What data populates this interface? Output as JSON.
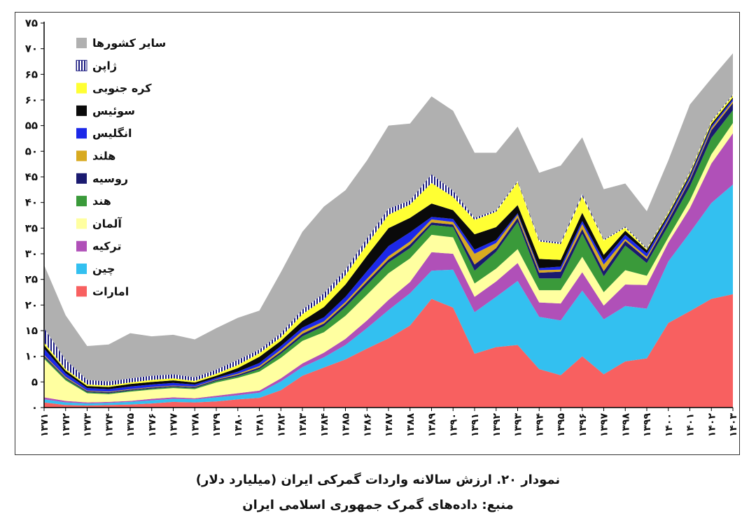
{
  "caption": {
    "title": "نمودار ۲۰. ارزش سالانه واردات گمرکی ایران (میلیارد دلار)",
    "source": "منبع: داده‌های گمرک جمهوری اسلامی ایران"
  },
  "chart_data": {
    "type": "area",
    "stacked": true,
    "ylim": [
      0,
      75
    ],
    "y_ticks": [
      "۰",
      "۵",
      "۱۰",
      "۱۵",
      "۲۰",
      "۲۵",
      "۳۰",
      "۳۵",
      "۴۰",
      "۴۵",
      "۵۰",
      "۵۵",
      "۶۰",
      "۶۵",
      "۷۰",
      "۷۵"
    ],
    "y_tick_values": [
      0,
      5,
      10,
      15,
      20,
      25,
      30,
      35,
      40,
      45,
      50,
      55,
      60,
      65,
      70,
      75
    ],
    "x_labels": [
      "۱۳۷۱",
      "۱۳۷۲",
      "۱۳۷۳",
      "۱۳۷۴",
      "۱۳۷۵",
      "۱۳۷۶",
      "۱۳۷۷",
      "۱۳۷۸",
      "۱۳۷۹",
      "۱۳۸۰",
      "۱۳۸۱",
      "۱۳۸۲",
      "۱۳۸۳",
      "۱۳۸۴",
      "۱۳۸۵",
      "۱۳۸۶",
      "۱۳۸۷",
      "۱۳۸۸",
      "۱۳۸۹",
      "۱۳۹۰",
      "۱۳۹۱",
      "۱۳۹۲",
      "۱۳۹۳",
      "۱۳۹۴",
      "۱۳۹۵",
      "۱۳۹۶",
      "۱۳۹۷",
      "۱۳۹۸",
      "۱۳۹۹",
      "۱۴۰۰",
      "۱۴۰۱",
      "۱۴۰۲",
      "۱۴۰۳"
    ],
    "legend_position": "top-left",
    "grid": false,
    "series": [
      {
        "name": "امارات",
        "color": "#f86060",
        "values": [
          1.0,
          0.5,
          0.4,
          0.5,
          0.6,
          0.8,
          1.1,
          1.0,
          1.2,
          1.6,
          1.9,
          3.4,
          6.2,
          7.8,
          9.4,
          11.5,
          13.5,
          16.0,
          21.2,
          19.5,
          10.5,
          11.8,
          12.2,
          7.5,
          6.3,
          10.0,
          6.5,
          9.0,
          9.6,
          16.5,
          18.8,
          21.2,
          22.1
        ]
      },
      {
        "name": "چین",
        "color": "#33c0f0",
        "values": [
          0.6,
          0.5,
          0.4,
          0.4,
          0.5,
          0.6,
          0.6,
          0.6,
          0.8,
          0.8,
          1.0,
          1.7,
          1.7,
          2.0,
          2.8,
          4.0,
          5.5,
          6.3,
          5.5,
          7.4,
          8.1,
          9.8,
          12.5,
          10.2,
          10.7,
          12.8,
          10.7,
          10.8,
          9.7,
          12.0,
          15.3,
          18.7,
          21.4
        ]
      },
      {
        "name": "ترکیه",
        "color": "#b050b8",
        "values": [
          0.4,
          0.3,
          0.2,
          0.2,
          0.2,
          0.3,
          0.3,
          0.2,
          0.3,
          0.4,
          0.4,
          0.6,
          0.7,
          0.9,
          1.2,
          1.5,
          2.0,
          2.2,
          3.6,
          3.1,
          3.0,
          3.0,
          3.5,
          2.8,
          3.3,
          3.6,
          2.7,
          4.2,
          4.6,
          3.7,
          4.8,
          7.7,
          10.0
        ]
      },
      {
        "name": "آلمان",
        "color": "#ffffa0",
        "values": [
          7.5,
          4.0,
          1.8,
          1.5,
          1.8,
          1.8,
          1.8,
          1.8,
          2.6,
          3.0,
          3.7,
          4.0,
          4.4,
          4.0,
          4.5,
          5.0,
          5.2,
          4.6,
          3.4,
          3.2,
          2.6,
          2.5,
          2.7,
          2.4,
          2.6,
          3.0,
          2.6,
          2.8,
          1.8,
          1.0,
          1.5,
          1.8,
          2.0
        ]
      },
      {
        "name": "هند",
        "color": "#3a9a3a",
        "values": [
          0.3,
          0.3,
          0.2,
          0.2,
          0.2,
          0.2,
          0.2,
          0.2,
          0.3,
          0.3,
          0.5,
          0.8,
          0.9,
          1.2,
          1.7,
          1.9,
          2.1,
          2.0,
          1.9,
          2.0,
          2.5,
          3.3,
          5.3,
          2.3,
          2.3,
          4.5,
          3.1,
          4.8,
          2.5,
          2.3,
          2.7,
          3.2,
          2.5
        ]
      },
      {
        "name": "روسیه",
        "color": "#1a1a70",
        "values": [
          0.3,
          0.2,
          0.2,
          0.2,
          0.2,
          0.2,
          0.2,
          0.2,
          0.2,
          0.3,
          0.3,
          0.4,
          0.5,
          0.5,
          0.6,
          0.7,
          0.6,
          0.7,
          0.5,
          0.5,
          1.2,
          0.7,
          0.8,
          1.1,
          1.3,
          0.9,
          1.0,
          0.9,
          0.8,
          1.0,
          1.2,
          1.5,
          1.4
        ]
      },
      {
        "name": "هلند",
        "color": "#d8aa20",
        "values": [
          0.2,
          0.2,
          0.1,
          0.1,
          0.1,
          0.1,
          0.1,
          0.1,
          0.1,
          0.2,
          0.3,
          0.4,
          0.5,
          0.4,
          0.4,
          0.5,
          0.6,
          0.6,
          0.6,
          0.5,
          2.1,
          1.0,
          0.6,
          0.5,
          0.4,
          1.0,
          1.3,
          0.4,
          0.4,
          0.3,
          0.3,
          0.4,
          0.4
        ]
      },
      {
        "name": "انگلیس",
        "color": "#1c28e8",
        "values": [
          1.2,
          0.7,
          0.5,
          0.5,
          0.5,
          0.5,
          0.5,
          0.4,
          0.3,
          0.4,
          0.6,
          0.7,
          0.7,
          0.8,
          1.0,
          1.5,
          2.0,
          1.8,
          0.5,
          0.6,
          0.8,
          0.6,
          0.3,
          0.4,
          0.6,
          0.6,
          0.8,
          0.8,
          0.7,
          0.5,
          0.5,
          0.4,
          0.4
        ]
      },
      {
        "name": "سوئیس",
        "color": "#0a0a0a",
        "values": [
          0.7,
          0.5,
          0.4,
          0.4,
          0.5,
          0.5,
          0.5,
          0.4,
          0.4,
          0.7,
          1.2,
          1.0,
          1.3,
          2.0,
          2.4,
          3.0,
          3.5,
          2.8,
          2.6,
          1.7,
          3.0,
          2.5,
          1.6,
          1.8,
          1.3,
          1.6,
          1.1,
          0.8,
          0.6,
          0.4,
          0.4,
          0.4,
          0.3
        ]
      },
      {
        "name": "کره جنوبی",
        "color": "#ffff33",
        "values": [
          0.5,
          0.3,
          0.3,
          0.3,
          0.3,
          0.4,
          0.4,
          0.3,
          0.4,
          0.6,
          0.7,
          0.7,
          1.3,
          1.5,
          1.8,
          2.2,
          2.6,
          2.6,
          4.0,
          2.6,
          2.8,
          3.0,
          4.5,
          3.4,
          3.1,
          3.2,
          2.8,
          0.6,
          0.2,
          0.3,
          0.3,
          0.4,
          0.4
        ]
      },
      {
        "name": "ژاپن",
        "color": "#1a1a80",
        "pattern": "stripes",
        "values": [
          2.8,
          1.8,
          0.9,
          0.8,
          0.8,
          0.8,
          0.8,
          0.7,
          0.8,
          1.0,
          0.7,
          0.8,
          0.9,
          1.2,
          1.1,
          1.2,
          1.2,
          0.8,
          1.7,
          1.2,
          0.4,
          0.3,
          0.2,
          0.3,
          0.3,
          0.5,
          0.2,
          0.2,
          0.2,
          0.1,
          0.2,
          0.2,
          0.2
        ]
      },
      {
        "name": "سایر کشورها",
        "color": "#b0b0b0",
        "values": [
          12.3,
          8.7,
          6.6,
          7.2,
          8.8,
          7.7,
          7.7,
          7.4,
          8.1,
          8.2,
          7.6,
          11.9,
          15.2,
          16.9,
          15.5,
          15.2,
          16.2,
          15.0,
          15.2,
          15.6,
          12.7,
          11.2,
          10.6,
          13.1,
          15.0,
          11.0,
          9.8,
          8.4,
          7.2,
          10.1,
          13.1,
          8.3,
          8.0
        ]
      }
    ]
  }
}
